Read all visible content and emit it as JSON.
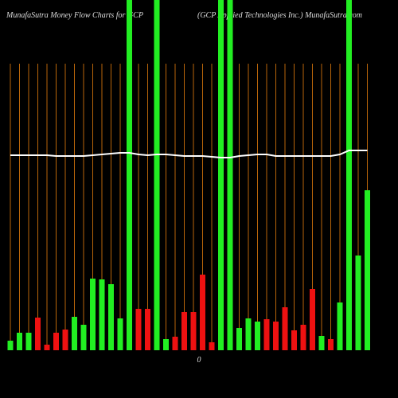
{
  "chart_data": {
    "type": "bar",
    "title": "MunafaSutra  Money Flow  Charts for GCP",
    "subtitle": "(GCP Applied Technologies Inc.) MunafaSutra.com",
    "zero_label": "0",
    "categories": [
      null,
      null,
      null,
      null,
      null,
      null,
      null,
      null,
      null,
      null,
      null,
      null,
      null,
      null,
      null,
      null,
      null,
      null,
      null,
      null,
      null,
      null,
      null,
      null,
      null,
      null,
      null,
      null,
      null,
      null,
      null,
      null,
      null,
      null,
      null,
      null,
      null,
      null,
      null,
      null
    ],
    "values": [
      12,
      22,
      22,
      41,
      7,
      22,
      26,
      42,
      32,
      90,
      89,
      83,
      40,
      440,
      52,
      52,
      440,
      14,
      17,
      48,
      48,
      95,
      10,
      440,
      440,
      28,
      40,
      36,
      39,
      36,
      54,
      25,
      32,
      77,
      18,
      14,
      60,
      440,
      119,
      201
    ],
    "colors": [
      "#22ee22",
      "#22ee22",
      "#22ee22",
      "#ee1111",
      "#ee1111",
      "#ee1111",
      "#ee1111",
      "#22ee22",
      "#22ee22",
      "#22ee22",
      "#22ee22",
      "#22ee22",
      "#22ee22",
      "#22ee22",
      "#ee1111",
      "#ee1111",
      "#22ee22",
      "#22ee22",
      "#ee1111",
      "#ee1111",
      "#ee1111",
      "#ee1111",
      "#ee1111",
      "#22ee22",
      "#22ee22",
      "#22ee22",
      "#22ee22",
      "#22ee22",
      "#ee1111",
      "#ee1111",
      "#ee1111",
      "#ee1111",
      "#ee1111",
      "#ee1111",
      "#22ee22",
      "#ee1111",
      "#22ee22",
      "#22ee22",
      "#22ee22",
      "#22ee22"
    ],
    "line": {
      "color": "#ffffff",
      "values": [
        245,
        245,
        245,
        245,
        245,
        244,
        244,
        244,
        244,
        245,
        246,
        247,
        248,
        248,
        246,
        245,
        246,
        246,
        245,
        244,
        244,
        244,
        243,
        242,
        242,
        244,
        245,
        246,
        246,
        244,
        244,
        244,
        244,
        244,
        244,
        244,
        246,
        251,
        251,
        251
      ]
    },
    "guide_color": "#b8650a",
    "ylim": [
      0,
      440
    ]
  }
}
